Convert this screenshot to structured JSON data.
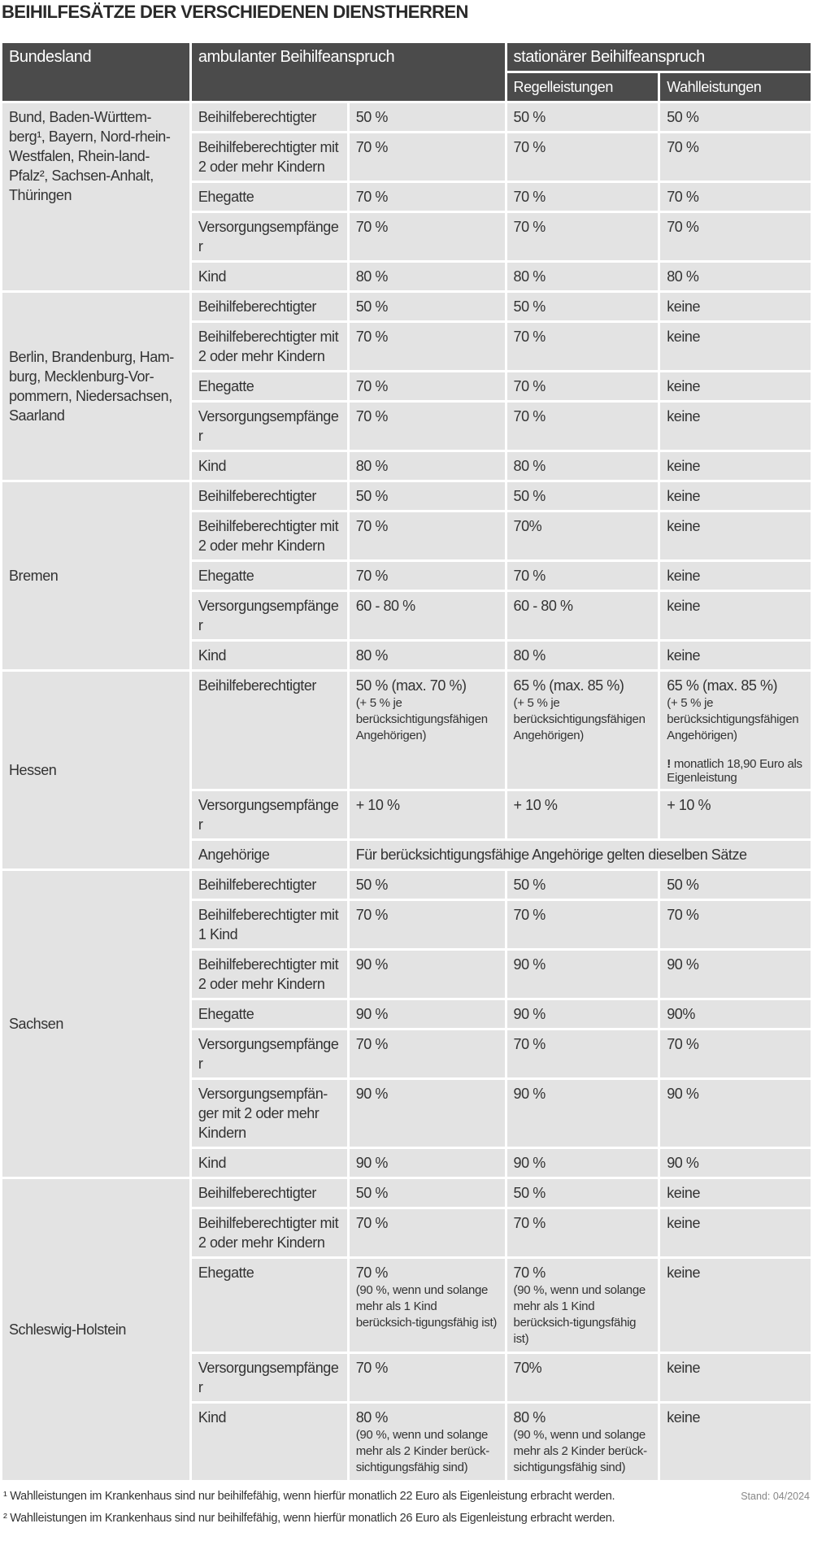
{
  "title": "BEIHILFESÄTZE DER VERSCHIEDENEN DIENSTHERREN",
  "header": {
    "bundesland": "Bundesland",
    "ambulant": "ambulanter Beihilfeanspruch",
    "stationaer": "stationärer Beihilfeanspruch",
    "regel": "Regelleistungen",
    "wahl": "Wahlleistungen"
  },
  "groups": [
    {
      "land": "Bund, Baden-Württem-berg¹, Bayern, Nord-rhein-Westfalen, Rhein-land-Pfalz², Sachsen-Anhalt, Thüringen",
      "align": "top",
      "rows": [
        {
          "person": "Beihilfeberechtigter",
          "amb": "50 %",
          "reg": "50 %",
          "wahl": "50 %"
        },
        {
          "person": "Beihilfeberechtigter mit 2 oder mehr Kindern",
          "amb": "70 %",
          "reg": "70 %",
          "wahl": "70 %"
        },
        {
          "person": "Ehegatte",
          "amb": "70 %",
          "reg": "70 %",
          "wahl": "70 %"
        },
        {
          "person": "Versorgungsempfänger",
          "amb": "70 %",
          "reg": "70 %",
          "wahl": "70 %"
        },
        {
          "person": "Kind",
          "amb": "80 %",
          "reg": "80 %",
          "wahl": "80 %"
        }
      ]
    },
    {
      "land": "Berlin, Brandenburg, Ham-burg, Mecklenburg-Vor-pommern, Niedersachsen, Saarland",
      "rows": [
        {
          "person": "Beihilfeberechtigter",
          "amb": "50 %",
          "reg": "50 %",
          "wahl": "keine"
        },
        {
          "person": "Beihilfeberechtigter mit 2 oder mehr Kindern",
          "amb": "70 %",
          "reg": "70 %",
          "wahl": "keine"
        },
        {
          "person": "Ehegatte",
          "amb": "70 %",
          "reg": "70 %",
          "wahl": "keine"
        },
        {
          "person": "Versorgungsempfänger",
          "amb": "70 %",
          "reg": "70 %",
          "wahl": "keine"
        },
        {
          "person": "Kind",
          "amb": "80 %",
          "reg": "80 %",
          "wahl": "keine"
        }
      ]
    },
    {
      "land": "Bremen",
      "rows": [
        {
          "person": "Beihilfeberechtigter",
          "amb": "50 %",
          "reg": "50 %",
          "wahl": "keine"
        },
        {
          "person": "Beihilfeberechtigter mit 2 oder mehr Kindern",
          "amb": "70 %",
          "reg": "70%",
          "wahl": "keine"
        },
        {
          "person": "Ehegatte",
          "amb": "70 %",
          "reg": "70 %",
          "wahl": "keine"
        },
        {
          "person": "Versorgungsempfänger",
          "amb": "60 - 80 %",
          "reg": "60 - 80 %",
          "wahl": "keine"
        },
        {
          "person": "Kind",
          "amb": "80 %",
          "reg": "80 %",
          "wahl": "keine"
        }
      ]
    },
    {
      "land": "Hessen",
      "rows": [
        {
          "person": "Beihilfeberechtigter",
          "amb": "50 % (max. 70 %)",
          "amb_note": "(+ 5 % je berücksichtigungsfähigen Angehörigen)",
          "reg": "65 % (max. 85 %)",
          "reg_note": "(+ 5 % je berücksichtigungsfähigen Angehörigen)",
          "wahl": "65 % (max. 85 %)",
          "wahl_note": "(+ 5 % je berücksichtigungsfähigen Angehörigen)",
          "wahl_warn_mark": "!",
          "wahl_warn": " monatlich 18,90 Euro als Eigenleistung"
        },
        {
          "person": "Versorgungsempfänger",
          "amb": "+ 10 %",
          "reg": "+ 10 %",
          "wahl": "+ 10 %"
        },
        {
          "person": "Angehörige",
          "span": "Für berücksichtigungsfähige Angehörige gelten dieselben Sätze"
        }
      ]
    },
    {
      "land": "Sachsen",
      "rows": [
        {
          "person": "Beihilfeberechtigter",
          "amb": "50 %",
          "reg": "50 %",
          "wahl": "50 %"
        },
        {
          "person": "Beihilfeberechtigter mit 1 Kind",
          "amb": "70 %",
          "reg": "70 %",
          "wahl": "70 %"
        },
        {
          "person": "Beihilfeberechtigter mit 2 oder mehr Kindern",
          "amb": "90 %",
          "reg": "90 %",
          "wahl": "90 %"
        },
        {
          "person": "Ehegatte",
          "amb": "90 %",
          "reg": "90 %",
          "wahl": "90%"
        },
        {
          "person": "Versorgungsempfänger",
          "amb": "70 %",
          "reg": "70 %",
          "wahl": "70 %"
        },
        {
          "person": "Versorgungsempfän-ger mit 2 oder mehr Kindern",
          "amb": "90 %",
          "reg": "90 %",
          "wahl": "90 %"
        },
        {
          "person": "Kind",
          "amb": "90 %",
          "reg": "90 %",
          "wahl": "90 %"
        }
      ]
    },
    {
      "land": "Schleswig-Holstein",
      "rows": [
        {
          "person": "Beihilfeberechtigter",
          "amb": "50 %",
          "reg": "50 %",
          "wahl": "keine"
        },
        {
          "person": "Beihilfeberechtigter mit 2 oder mehr Kindern",
          "amb": "70 %",
          "reg": "70 %",
          "wahl": "keine"
        },
        {
          "person": "Ehegatte",
          "amb": "70 %",
          "amb_note": "(90 %, wenn und solange mehr als 1 Kind berücksich-tigungsfähig ist)",
          "reg": "70 %",
          "reg_note": "(90 %, wenn und solange mehr als 1 Kind berücksich-tigungsfähig ist)",
          "wahl": "keine"
        },
        {
          "person": "Versorgungsempfänger",
          "amb": "70 %",
          "reg": "70%",
          "wahl": "keine"
        },
        {
          "person": "Kind",
          "amb": "80 %",
          "amb_note": "(90 %, wenn und solange mehr als 2 Kinder berück-sichtigungsfähig sind)",
          "reg": "80 %",
          "reg_note": "(90 %, wenn und solange mehr als 2 Kinder berück-sichtigungsfähig sind)",
          "wahl": "keine"
        }
      ]
    }
  ],
  "footnotes": [
    "¹ Wahlleistungen im Krankenhaus sind nur beihilfefähig, wenn hierfür monatlich 22 Euro als Eigenleistung erbracht werden.",
    "² Wahlleistungen im Krankenhaus sind nur beihilfefähig, wenn hierfür monatlich 26 Euro als Eigenleistung erbracht werden."
  ],
  "stand": "Stand: 04/2024",
  "colors": {
    "header_bg": "#4b4b4b",
    "cell_bg": "#e3e3e3"
  }
}
